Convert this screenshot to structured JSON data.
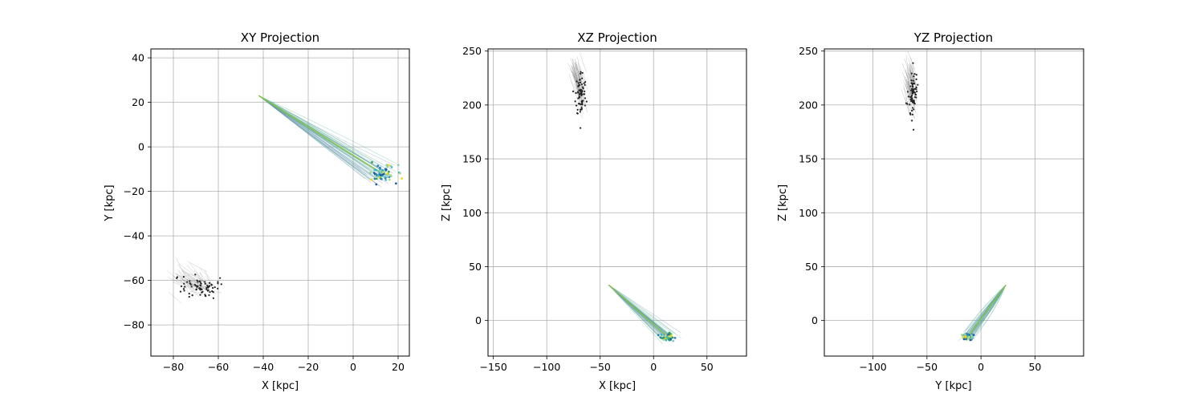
{
  "chart_data": [
    {
      "type": "scatter",
      "title": "XY Projection",
      "xlabel": "X [kpc]",
      "ylabel": "Y [kpc]",
      "xlim": [
        -90,
        25
      ],
      "ylim": [
        -94,
        44
      ],
      "xticks": [
        -80,
        -60,
        -40,
        -20,
        0,
        20
      ],
      "yticks": [
        -80,
        -60,
        -40,
        -20,
        0,
        20,
        40
      ],
      "grid": true,
      "series": [
        {
          "kind": "stream-tracks",
          "color": "#4caf8a",
          "start": [
            -42,
            23
          ],
          "end_center": [
            13,
            -12
          ],
          "end_spread": [
            7,
            5
          ],
          "n_tracks": 40
        },
        {
          "kind": "stream-particles",
          "colors": [
            "#2c7fb8",
            "#41b6c4",
            "#7fcdbb",
            "#31a354",
            "#addd8e",
            "#ffd700",
            "#225ea8"
          ],
          "center": [
            13,
            -12
          ],
          "spread": [
            6,
            4
          ],
          "n_points": 70
        },
        {
          "kind": "progenitor-tracks",
          "color": "#808080",
          "center": [
            -68,
            -63
          ],
          "spread": [
            8,
            5
          ],
          "trail": [
            -6,
            5
          ],
          "n_tracks": 60
        },
        {
          "kind": "progenitor-points",
          "color": "#222222",
          "center": [
            -68,
            -63
          ],
          "spread": [
            8,
            5
          ],
          "n_points": 70
        }
      ]
    },
    {
      "type": "scatter",
      "title": "XZ Projection",
      "xlabel": "X [kpc]",
      "ylabel": "Z [kpc]",
      "xlim": [
        -155,
        87
      ],
      "ylim": [
        -33,
        252
      ],
      "xticks": [
        -150,
        -100,
        -50,
        0,
        50
      ],
      "yticks": [
        0,
        50,
        100,
        150,
        200,
        250
      ],
      "grid": true,
      "series": [
        {
          "kind": "stream-tracks",
          "color": "#4caf8a",
          "start": [
            -42,
            33
          ],
          "end_center": [
            13,
            -15
          ],
          "end_spread": [
            7,
            4
          ],
          "n_tracks": 40
        },
        {
          "kind": "stream-particles",
          "colors": [
            "#2c7fb8",
            "#41b6c4",
            "#7fcdbb",
            "#31a354",
            "#addd8e",
            "#ffd700",
            "#225ea8"
          ],
          "center": [
            13,
            -15
          ],
          "spread": [
            6,
            3
          ],
          "n_points": 70
        },
        {
          "kind": "progenitor-tracks",
          "color": "#808080",
          "center": [
            -68,
            210
          ],
          "spread": [
            5,
            20
          ],
          "trail": [
            -6,
            18
          ],
          "n_tracks": 60
        },
        {
          "kind": "progenitor-points",
          "color": "#222222",
          "center": [
            -68,
            210
          ],
          "spread": [
            5,
            22
          ],
          "n_points": 70
        }
      ]
    },
    {
      "type": "scatter",
      "title": "YZ Projection",
      "xlabel": "Y [kpc]",
      "ylabel": "Z [kpc]",
      "xlim": [
        -145,
        95
      ],
      "ylim": [
        -33,
        252
      ],
      "xticks": [
        -100,
        -50,
        0,
        50
      ],
      "yticks": [
        0,
        50,
        100,
        150,
        200,
        250
      ],
      "grid": true,
      "series": [
        {
          "kind": "stream-tracks",
          "color": "#4caf8a",
          "start": [
            23,
            33
          ],
          "end_center": [
            -12,
            -15
          ],
          "end_spread": [
            5,
            4
          ],
          "n_tracks": 40
        },
        {
          "kind": "stream-particles",
          "colors": [
            "#2c7fb8",
            "#41b6c4",
            "#7fcdbb",
            "#31a354",
            "#addd8e",
            "#ffd700",
            "#225ea8"
          ],
          "center": [
            -12,
            -15
          ],
          "spread": [
            5,
            3
          ],
          "n_points": 70
        },
        {
          "kind": "progenitor-tracks",
          "color": "#808080",
          "center": [
            -63,
            210
          ],
          "spread": [
            4,
            20
          ],
          "trail": [
            -5,
            18
          ],
          "n_tracks": 60
        },
        {
          "kind": "progenitor-points",
          "color": "#222222",
          "center": [
            -63,
            210
          ],
          "spread": [
            4,
            22
          ],
          "n_points": 70
        }
      ]
    }
  ]
}
